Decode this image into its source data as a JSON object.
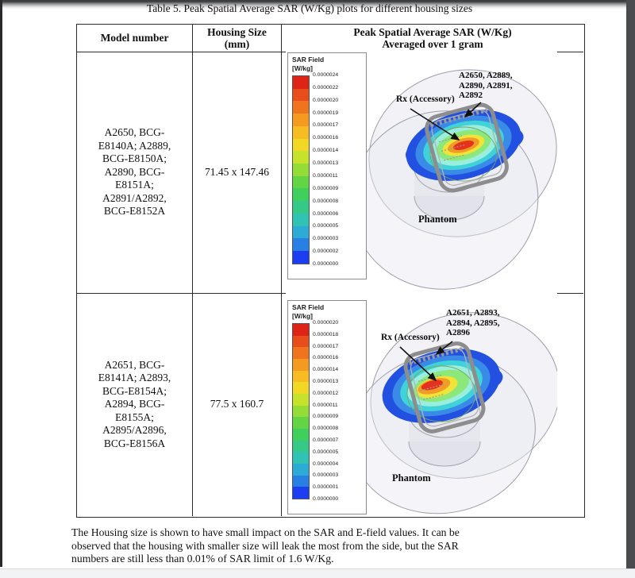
{
  "page": {
    "title": "Table 5. Peak Spatial Average SAR (W/Kg) plots for different housing sizes",
    "footer_note": "The Housing size is shown to have small impact on the SAR and E-field values. It can be\nobserved that the housing with smaller size will leak the most from the side, but the SAR\nnumbers are still less than 0.01% of SAR limit of 1.6 W/Kg."
  },
  "table": {
    "headers": {
      "model": "Model number",
      "housing": "Housing Size\n(mm)",
      "sar": "Peak Spatial Average SAR (W/Kg)\nAveraged over 1 gram"
    },
    "rows": [
      {
        "model": "A2650, BCG-\nE8140A; A2889,\nBCG-E8150A;\nA2890, BCG-\nE8151A;\nA2891/A2892,\nBCG-E8152A",
        "housing": "71.45 x 147.46",
        "figure": {
          "legend_title": "SAR Field",
          "legend_unit": "[W/kg]",
          "legend_values": [
            "0.0000024",
            "0.0000022",
            "0.0000020",
            "0.0000019",
            "0.0000017",
            "0.0000016",
            "0.0000014",
            "0.0000013",
            "0.0000011",
            "0.0000009",
            "0.0000008",
            "0.0000006",
            "0.0000005",
            "0.0000003",
            "0.0000002",
            "0.0000000"
          ],
          "device_label": "A2650, A2889,\nA2890, A2891,\nA2892",
          "rx_label": "Rx (Accessory)",
          "phantom_label": "Phantom"
        }
      },
      {
        "model": "A2651, BCG-\nE8141A; A2893,\nBCG-E8154A;\nA2894, BCG-\nE8155A;\nA2895/A2896,\nBCG-E8156A",
        "housing": "77.5 x 160.7",
        "figure": {
          "legend_title": "SAR Field",
          "legend_unit": "[W/kg]",
          "legend_values": [
            "0.0000020",
            "0.0000018",
            "0.0000017",
            "0.0000016",
            "0.0000014",
            "0.0000013",
            "0.0000012",
            "0.0000011",
            "0.0000009",
            "0.0000008",
            "0.0000007",
            "0.0000005",
            "0.0000004",
            "0.0000003",
            "0.0000001",
            "0.0000000"
          ],
          "device_label": "A2651, A2893,\nA2894, A2895,\nA2896",
          "rx_label": "Rx (Accessory)",
          "phantom_label": "Phantom"
        }
      }
    ]
  },
  "legend_colors": [
    "#de2317",
    "#e94d1b",
    "#f0731e",
    "#f49a20",
    "#f6bc22",
    "#f0d824",
    "#c6e22b",
    "#94dc36",
    "#63d544",
    "#3fcf5c",
    "#35c987",
    "#30c2b2",
    "#2cabd4",
    "#2980e4",
    "#1c3ef0"
  ],
  "heat_colors": [
    "#2250e0",
    "#3a8ae8",
    "#3fd2d8",
    "#9aeede",
    "#8ce87a",
    "#f0e438",
    "#f09c26",
    "#e5321c"
  ]
}
